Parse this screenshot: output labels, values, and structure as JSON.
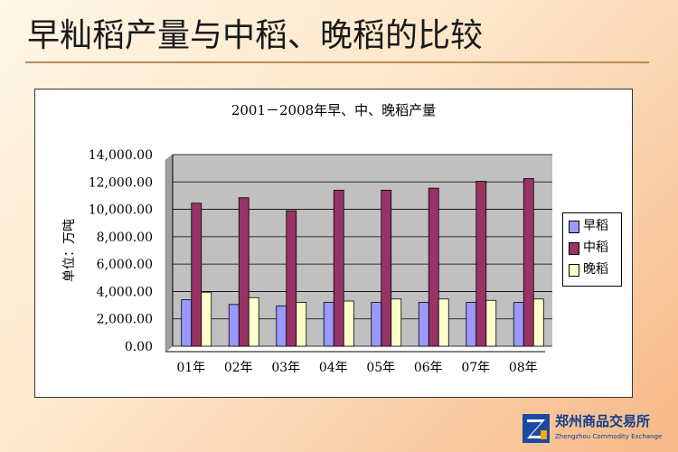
{
  "slide": {
    "title": "早籼稻产量与中稻、晚稻的比较"
  },
  "chart_data": {
    "type": "bar",
    "title": "2001－2008年早、中、晚稻产量",
    "ylabel": "单位：万吨",
    "xlabel": "",
    "categories": [
      "01年",
      "02年",
      "03年",
      "04年",
      "05年",
      "06年",
      "07年",
      "08年"
    ],
    "ylim": [
      0,
      14000
    ],
    "yticks": [
      "0.00",
      "2,000.00",
      "4,000.00",
      "6,000.00",
      "8,000.00",
      "10,000.00",
      "12,000.00",
      "14,000.00"
    ],
    "grid": true,
    "legend_position": "right",
    "series": [
      {
        "name": "早稻",
        "color": "#9999ff",
        "values": [
          3400,
          3050,
          2950,
          3200,
          3200,
          3200,
          3200,
          3200
        ]
      },
      {
        "name": "中稻",
        "color": "#993366",
        "values": [
          10450,
          10850,
          9900,
          11400,
          11400,
          11550,
          12050,
          12250
        ]
      },
      {
        "name": "晚稻",
        "color": "#ffffcc",
        "values": [
          3950,
          3550,
          3200,
          3300,
          3450,
          3450,
          3350,
          3450
        ]
      }
    ],
    "plot_background": "#c0c0c0"
  },
  "logo": {
    "name": "郑州商品交易所",
    "sub": "Zhengzhou Commodity Exchange"
  }
}
